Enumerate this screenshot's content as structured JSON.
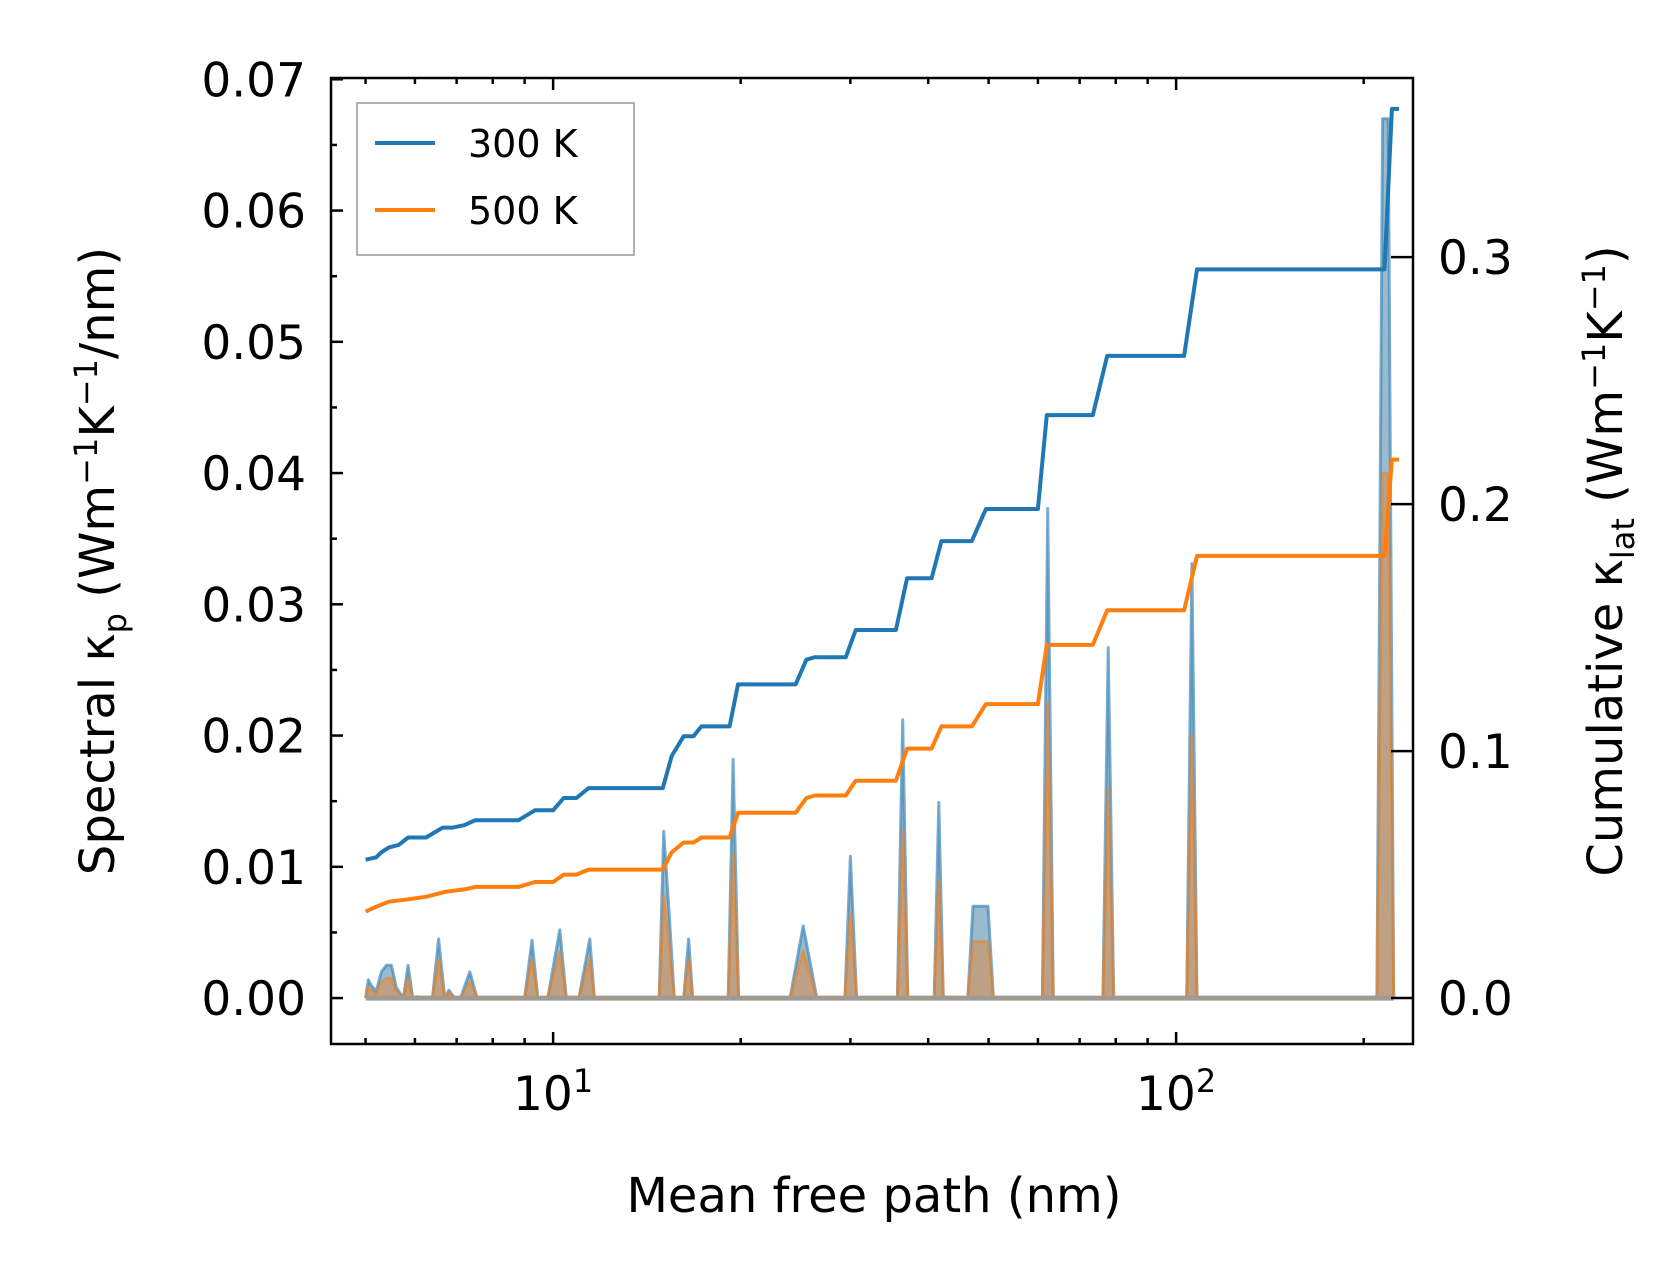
{
  "chart_data": {
    "type": "line",
    "xlabel": "Mean free path (nm)",
    "xscale": "log",
    "xlim": [
      4.4,
      240
    ],
    "ylabel_left": {
      "main": "Spectral κ",
      "sub": "p",
      "unit_open": " (Wm",
      "sup1": "−1",
      "mid": "K",
      "sup2": "−1",
      "unit_close": "/nm)"
    },
    "ylabel_right": {
      "main": "Cumulative κ",
      "sub": "lat",
      "unit_open": " (Wm",
      "sup1": "−1",
      "mid": "K",
      "sup2": "−1",
      "unit_close": ")"
    },
    "ylim_left": [
      -0.0035,
      0.0701
    ],
    "ylim_right": [
      -0.0186,
      0.3725
    ],
    "x_ticks": [
      {
        "value": 10,
        "base": "10",
        "exp": "1"
      },
      {
        "value": 100,
        "base": "10",
        "exp": "2"
      }
    ],
    "y_left_ticks": [
      {
        "value": 0,
        "label": "0.00"
      },
      {
        "value": 0.01,
        "label": "0.01"
      },
      {
        "value": 0.02,
        "label": "0.02"
      },
      {
        "value": 0.03,
        "label": "0.03"
      },
      {
        "value": 0.04,
        "label": "0.04"
      },
      {
        "value": 0.05,
        "label": "0.05"
      },
      {
        "value": 0.06,
        "label": "0.06"
      },
      {
        "value": 0.07,
        "label": "0.07"
      }
    ],
    "y_right_ticks": [
      {
        "value": 0,
        "label": "0.0"
      },
      {
        "value": 0.1,
        "label": "0.1"
      },
      {
        "value": 0.2,
        "label": "0.2"
      },
      {
        "value": 0.3,
        "label": "0.3"
      }
    ],
    "legend": {
      "location": "upper-left",
      "entries": [
        {
          "label": "300 K",
          "color": "#1f77b4"
        },
        {
          "label": "500 K",
          "color": "#ff7f0e"
        }
      ]
    },
    "series": [
      {
        "name": "300 K",
        "color": "#1f77b4",
        "cumulative": {
          "axis": "right",
          "x": [
            5,
            5.2,
            5.3,
            5.45,
            5.65,
            5.85,
            6.25,
            6.65,
            6.9,
            7.2,
            7.5,
            8.8,
            9.35,
            10.0,
            10.4,
            10.9,
            11.4,
            11.8,
            15.0,
            15.5,
            16.2,
            16.8,
            17.3,
            19.2,
            19.8,
            24.5,
            25.5,
            26.3,
            29.5,
            30.6,
            35.5,
            37.0,
            40.5,
            42.0,
            47.0,
            49.5,
            60.0,
            62.0,
            73.5,
            77.5,
            103,
            108,
            216,
            222,
            228
          ],
          "y": [
            0.056,
            0.057,
            0.059,
            0.061,
            0.062,
            0.065,
            0.065,
            0.069,
            0.069,
            0.07,
            0.072,
            0.072,
            0.076,
            0.076,
            0.081,
            0.081,
            0.085,
            0.085,
            0.085,
            0.098,
            0.106,
            0.106,
            0.11,
            0.11,
            0.127,
            0.127,
            0.137,
            0.138,
            0.138,
            0.149,
            0.149,
            0.17,
            0.17,
            0.185,
            0.185,
            0.198,
            0.198,
            0.236,
            0.236,
            0.26,
            0.26,
            0.295,
            0.295,
            0.36,
            0.36
          ]
        },
        "spectral": {
          "axis": "left",
          "x": [
            5,
            5.05,
            5.1,
            5.2,
            5.3,
            5.4,
            5.5,
            5.6,
            5.75,
            5.85,
            5.95,
            6.05,
            6.15,
            6.4,
            6.55,
            6.7,
            6.8,
            6.95,
            7.1,
            7.35,
            7.55,
            7.75,
            9.0,
            9.25,
            9.45,
            9.8,
            10.25,
            10.5,
            11.0,
            11.45,
            11.65,
            14.8,
            15.05,
            15.35,
            15.65,
            16.2,
            16.5,
            16.75,
            17.1,
            19.1,
            19.45,
            19.85,
            24.0,
            25.2,
            26.5,
            29.4,
            30.0,
            30.7,
            35.7,
            36.4,
            37.1,
            40.9,
            41.6,
            42.3,
            46.3,
            47.2,
            49.9,
            50.9,
            61.0,
            62.2,
            63.5,
            76.3,
            77.8,
            79.4,
            104,
            106,
            108,
            210,
            214.5,
            219,
            223.5
          ],
          "y": [
            0,
            0.0014,
            0.001,
            0.0005,
            0.002,
            0.0025,
            0.0025,
            0.0008,
            0,
            0.0025,
            0,
            0.0001,
            0,
            0,
            0.0045,
            0,
            0.0006,
            0,
            0,
            0.002,
            0,
            0,
            0,
            0.0044,
            0,
            0,
            0.0052,
            0,
            0,
            0.0045,
            0,
            0,
            0.0127,
            0.0065,
            0,
            0,
            0.0045,
            0,
            0,
            0,
            0.0182,
            0,
            0,
            0.0055,
            0,
            0,
            0.0108,
            0,
            0,
            0.0212,
            0,
            0,
            0.0149,
            0,
            0,
            0.007,
            0.007,
            0,
            0,
            0.0373,
            0,
            0,
            0.0267,
            0,
            0,
            0.0331,
            0,
            0,
            0.067,
            0.067,
            0
          ]
        }
      },
      {
        "name": "500 K",
        "color": "#ff7f0e",
        "cumulative": {
          "axis": "right",
          "x": [
            5,
            5.2,
            5.45,
            5.85,
            6.25,
            6.7,
            7.2,
            7.5,
            8.8,
            9.35,
            10.0,
            10.4,
            10.9,
            11.4,
            11.8,
            15.0,
            15.5,
            16.2,
            16.8,
            17.3,
            19.2,
            19.8,
            24.5,
            25.5,
            26.3,
            29.5,
            30.6,
            35.5,
            37.0,
            40.5,
            42.0,
            47.0,
            49.5,
            60.0,
            62.0,
            73.5,
            77.5,
            103,
            108,
            216,
            222,
            228
          ],
          "y": [
            0.035,
            0.037,
            0.039,
            0.04,
            0.041,
            0.043,
            0.044,
            0.045,
            0.045,
            0.047,
            0.047,
            0.05,
            0.05,
            0.052,
            0.052,
            0.052,
            0.059,
            0.063,
            0.063,
            0.065,
            0.065,
            0.075,
            0.075,
            0.081,
            0.082,
            0.082,
            0.088,
            0.088,
            0.101,
            0.101,
            0.11,
            0.11,
            0.119,
            0.119,
            0.143,
            0.143,
            0.157,
            0.157,
            0.179,
            0.179,
            0.218,
            0.218
          ]
        },
        "spectral": {
          "axis": "left",
          "x": [
            5,
            5.05,
            5.1,
            5.2,
            5.3,
            5.4,
            5.5,
            5.6,
            5.75,
            5.85,
            5.95,
            6.05,
            6.15,
            6.4,
            6.55,
            6.7,
            6.8,
            6.95,
            7.1,
            7.35,
            7.55,
            7.75,
            9.0,
            9.25,
            9.45,
            9.8,
            10.25,
            10.5,
            11.0,
            11.45,
            11.65,
            14.8,
            15.05,
            15.35,
            15.65,
            16.2,
            16.5,
            16.75,
            17.1,
            19.1,
            19.45,
            19.85,
            24.0,
            25.2,
            26.5,
            29.4,
            30.0,
            30.7,
            35.7,
            36.4,
            37.1,
            40.9,
            41.6,
            42.3,
            46.3,
            47.2,
            49.9,
            50.9,
            61.0,
            62.2,
            63.5,
            76.3,
            77.8,
            79.4,
            104,
            106,
            108,
            210,
            214.5,
            219,
            223.5
          ],
          "y": [
            0,
            0.0008,
            0.0006,
            0.0003,
            0.0012,
            0.0015,
            0.0015,
            0.0005,
            0,
            0.0015,
            0,
            0.0001,
            0,
            0,
            0.003,
            0,
            0.0004,
            0,
            0,
            0.0012,
            0,
            0,
            0,
            0.003,
            0,
            0,
            0.0035,
            0,
            0,
            0.003,
            0,
            0,
            0.0078,
            0.004,
            0,
            0,
            0.003,
            0,
            0,
            0,
            0.011,
            0,
            0,
            0.0036,
            0,
            0,
            0.0065,
            0,
            0,
            0.0128,
            0,
            0,
            0.009,
            0,
            0,
            0.0043,
            0.0043,
            0,
            0,
            0.0225,
            0,
            0,
            0.016,
            0,
            0,
            0.02,
            0,
            0,
            0.04,
            0.04,
            0
          ]
        }
      }
    ]
  }
}
